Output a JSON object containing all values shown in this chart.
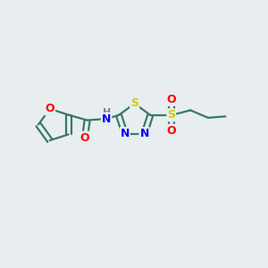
{
  "background_color": "#e8edf0",
  "bond_color": "#3a7a62",
  "atom_colors": {
    "O": "#ff0000",
    "N": "#0000ee",
    "S_thiad": "#cccc00",
    "S_sulfonyl": "#cccc00",
    "H": "#708090",
    "C": "#3a7a62"
  },
  "font_size": 9,
  "bond_width": 1.6
}
